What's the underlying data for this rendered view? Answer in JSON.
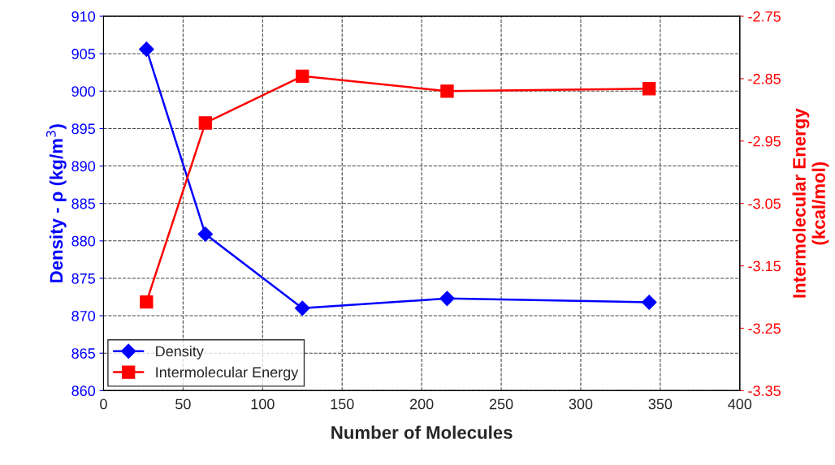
{
  "chart_data": {
    "type": "line",
    "xlabel": "Number of Molecules",
    "ylabel": "Density - ρ (kg/m$^{3}$)",
    "y2label": "Intermolecular Energy\n(kcal/mol)",
    "series": [
      {
        "name": "Density",
        "color": "#0000ff",
        "marker": "diamond",
        "x": [
          27,
          64,
          125,
          216,
          343
        ],
        "values": [
          905.6,
          880.9,
          871.0,
          872.3,
          871.8
        ]
      },
      {
        "name": "Intermolecular Energy",
        "color": "#ff0000",
        "marker": "square",
        "axis": "y2",
        "x": [
          27,
          64,
          125,
          216,
          343
        ],
        "values": [
          -3.208,
          -2.921,
          -2.846,
          -2.87,
          -2.866
        ]
      }
    ],
    "xlim": [
      0,
      400
    ],
    "xticks": [
      0,
      50,
      100,
      150,
      200,
      250,
      300,
      350,
      400
    ],
    "ylim": [
      860,
      910
    ],
    "yticks": [
      860,
      865,
      870,
      875,
      880,
      885,
      890,
      895,
      900,
      905,
      910
    ],
    "y2lim": [
      -3.35,
      -2.75
    ],
    "y2ticks": [
      -3.35,
      -3.25,
      -3.15,
      -3.05,
      -2.95,
      -2.85,
      -2.75
    ],
    "grid": true,
    "legend": "bottom left",
    "line_style": "solid"
  }
}
